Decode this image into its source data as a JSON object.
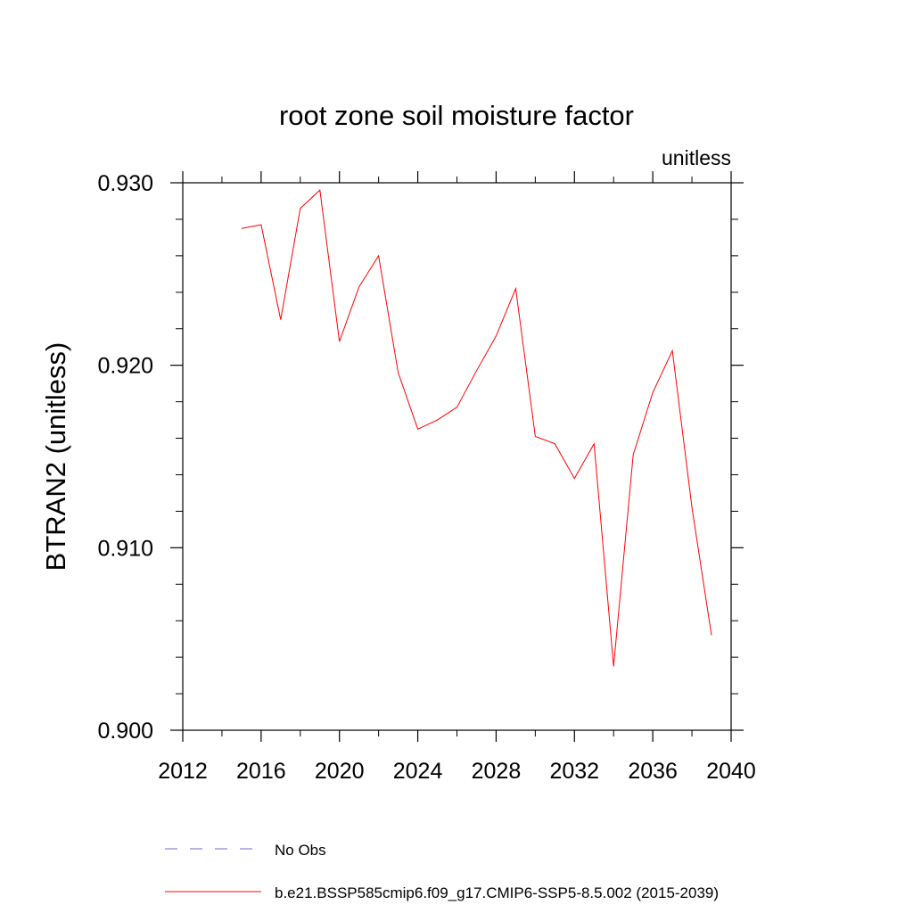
{
  "chart_data": {
    "type": "line",
    "title": "root zone soil moisture factor",
    "units_label": "unitless",
    "ylabel": "BTRAN2  (unitless)",
    "xlabel": "",
    "xlim": [
      2012,
      2040
    ],
    "ylim": [
      0.9,
      0.93
    ],
    "x_ticks": [
      "2012",
      "2016",
      "2020",
      "2024",
      "2028",
      "2032",
      "2036",
      "2040"
    ],
    "y_ticks": [
      "0.900",
      "0.910",
      "0.920",
      "0.930"
    ],
    "grid": false,
    "legend_placement": "bottom",
    "series": [
      {
        "name": "b.e21.BSSP585cmip6.f09_g17.CMIP6-SSP5-8.5.002 (2015-2039)",
        "color": "#ff0000",
        "style": "solid",
        "x": [
          2015,
          2016,
          2017,
          2018,
          2019,
          2020,
          2021,
          2022,
          2023,
          2024,
          2025,
          2026,
          2027,
          2028,
          2029,
          2030,
          2031,
          2032,
          2033,
          2034,
          2035,
          2036,
          2037,
          2038,
          2039
        ],
        "y": [
          0.9275,
          0.9277,
          0.9225,
          0.9286,
          0.9296,
          0.9213,
          0.9243,
          0.926,
          0.9196,
          0.9165,
          0.917,
          0.9177,
          0.9197,
          0.9216,
          0.9242,
          0.9161,
          0.9157,
          0.9138,
          0.9157,
          0.9035,
          0.9151,
          0.9185,
          0.9208,
          0.9122,
          0.9052
        ]
      }
    ],
    "legend": [
      {
        "label": "No Obs",
        "color": "#6a6ad0",
        "style": "dashed"
      },
      {
        "label": "b.e21.BSSP585cmip6.f09_g17.CMIP6-SSP5-8.5.002 (2015-2039)",
        "color": "#ff0000",
        "style": "solid"
      }
    ]
  }
}
